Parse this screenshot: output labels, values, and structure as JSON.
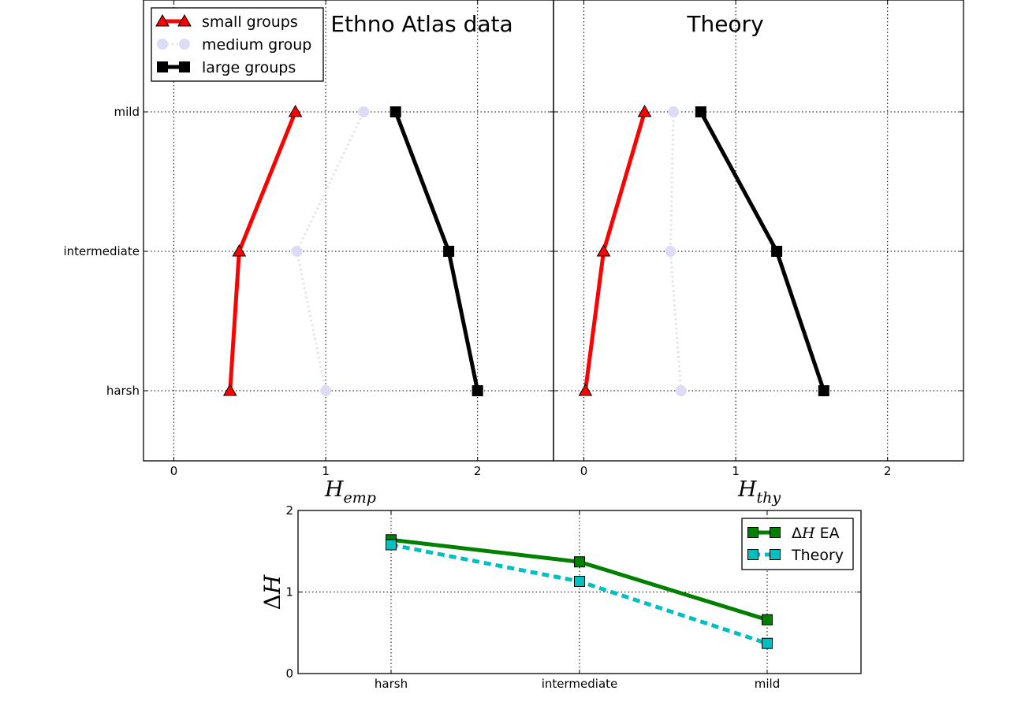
{
  "chart_data": [
    {
      "type": "line",
      "title": "Ethno Atlas data",
      "xlabel_base": "H",
      "xlabel_sub": "emp",
      "xlim": [
        -0.2,
        2.5
      ],
      "xticks": [
        "0",
        "1",
        "2"
      ],
      "categories": [
        "harsh",
        "intermediate",
        "mild"
      ],
      "grid": true,
      "legend_position": "top-left",
      "series": [
        {
          "name": "small groups",
          "color": "#ff0000",
          "marker": "triangle",
          "style": "solid",
          "values": [
            0.37,
            0.43,
            0.8
          ]
        },
        {
          "name": "medium group",
          "color": "#dcdcf5",
          "marker": "circle",
          "style": "dotted",
          "values": [
            1.0,
            0.81,
            1.25
          ]
        },
        {
          "name": "large groups",
          "color": "#000000",
          "marker": "square",
          "style": "solid",
          "values": [
            2.0,
            1.81,
            1.46
          ]
        }
      ]
    },
    {
      "type": "line",
      "title": "Theory",
      "xlabel_base": "H",
      "xlabel_sub": "thy",
      "xlim": [
        -0.2,
        2.5
      ],
      "xticks": [
        "0",
        "1",
        "2"
      ],
      "categories": [
        "harsh",
        "intermediate",
        "mild"
      ],
      "grid": true,
      "series": [
        {
          "name": "small groups",
          "color": "#ff0000",
          "marker": "triangle",
          "style": "solid",
          "values": [
            0.01,
            0.13,
            0.4
          ]
        },
        {
          "name": "medium group",
          "color": "#dcdcf5",
          "marker": "circle",
          "style": "dotted",
          "values": [
            0.64,
            0.57,
            0.59
          ]
        },
        {
          "name": "large groups",
          "color": "#000000",
          "marker": "square",
          "style": "solid",
          "values": [
            1.58,
            1.27,
            0.77
          ]
        }
      ]
    },
    {
      "type": "line",
      "ylabel_prefix": "Δ",
      "ylabel_base": "H",
      "categories": [
        "harsh",
        "intermediate",
        "mild"
      ],
      "ylim": [
        0,
        2
      ],
      "yticks": [
        "0",
        "1",
        "2"
      ],
      "grid": true,
      "legend_position": "top-right",
      "series": [
        {
          "name": "EA",
          "name_math_prefix": "Δ",
          "name_math_base": "H",
          "color": "#008000",
          "marker": "square",
          "style": "solid",
          "values": [
            1.64,
            1.37,
            0.66
          ]
        },
        {
          "name": "Theory",
          "color": "#00bfbf",
          "marker": "square",
          "style": "dashed",
          "values": [
            1.58,
            1.13,
            0.37
          ]
        }
      ]
    }
  ]
}
